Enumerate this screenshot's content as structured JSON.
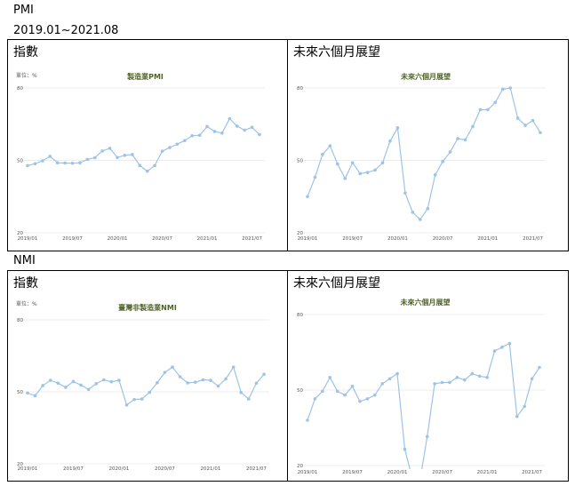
{
  "header": {
    "pmi_heading": "PMI",
    "date_range": "2019.01~2021.08",
    "nmi_heading": "NMI"
  },
  "colors": {
    "line": "#9dc3e6",
    "title": "#4f6228",
    "grid": "#d9d9d9"
  },
  "panels": {
    "pmi_index": {
      "label": "指數"
    },
    "pmi_outlook": {
      "label": "未來六個月展望"
    },
    "nmi_index": {
      "label": "指數"
    },
    "nmi_outlook": {
      "label": "未來六個月展望"
    }
  },
  "chart_data": [
    {
      "id": "pmi_index",
      "type": "line",
      "title": "製造業PMI",
      "unit": "單位：%",
      "ylim": [
        20,
        80
      ],
      "yticks": [
        20,
        50,
        80
      ],
      "grid": true,
      "x": [
        "2019/01",
        "2019/02",
        "2019/03",
        "2019/04",
        "2019/05",
        "2019/06",
        "2019/07",
        "2019/08",
        "2019/09",
        "2019/10",
        "2019/11",
        "2019/12",
        "2020/01",
        "2020/02",
        "2020/03",
        "2020/04",
        "2020/05",
        "2020/06",
        "2020/07",
        "2020/08",
        "2020/09",
        "2020/10",
        "2020/11",
        "2020/12",
        "2021/01",
        "2021/02",
        "2021/03",
        "2021/04",
        "2021/05",
        "2021/06",
        "2021/07",
        "2021/08"
      ],
      "xticks": [
        "2019/01",
        "2019/07",
        "2020/01",
        "2020/07",
        "2021/01",
        "2021/07"
      ],
      "values": [
        47.8,
        48.6,
        49.8,
        51.7,
        49.0,
        48.9,
        48.8,
        49.0,
        50.4,
        51.1,
        53.9,
        55.0,
        51.2,
        52.1,
        52.4,
        47.9,
        45.5,
        47.8,
        53.8,
        55.3,
        56.7,
        58.2,
        60.2,
        60.4,
        64.0,
        62.0,
        61.3,
        67.3,
        64.2,
        62.5,
        63.7,
        60.7
      ]
    },
    {
      "id": "pmi_outlook",
      "type": "line",
      "title": "未來六個月展望",
      "ylim": [
        20,
        80
      ],
      "yticks": [
        20,
        50,
        80
      ],
      "grid": true,
      "x": [
        "2019/01",
        "2019/02",
        "2019/03",
        "2019/04",
        "2019/05",
        "2019/06",
        "2019/07",
        "2019/08",
        "2019/09",
        "2019/10",
        "2019/11",
        "2019/12",
        "2020/01",
        "2020/02",
        "2020/03",
        "2020/04",
        "2020/05",
        "2020/06",
        "2020/07",
        "2020/08",
        "2020/09",
        "2020/10",
        "2020/11",
        "2020/12",
        "2021/01",
        "2021/02",
        "2021/03",
        "2021/04",
        "2021/05",
        "2021/06",
        "2021/07",
        "2021/08"
      ],
      "xticks": [
        "2019/01",
        "2019/07",
        "2020/01",
        "2020/07",
        "2021/01",
        "2021/07"
      ],
      "values": [
        35.0,
        43.0,
        52.5,
        56.0,
        48.5,
        42.5,
        49.0,
        44.5,
        45.0,
        46.0,
        49.0,
        58.0,
        63.5,
        36.5,
        28.5,
        25.5,
        30.0,
        44.0,
        49.5,
        53.5,
        59.0,
        58.5,
        64.0,
        71.0,
        71.0,
        74.0,
        79.5,
        80.0,
        67.5,
        64.5,
        66.5,
        61.5
      ]
    },
    {
      "id": "nmi_index",
      "type": "line",
      "title": "臺灣非製造業NMI",
      "unit": "單位：%",
      "ylim": [
        20,
        80
      ],
      "yticks": [
        20,
        50,
        80
      ],
      "grid": true,
      "x": [
        "2019/01",
        "2019/02",
        "2019/03",
        "2019/04",
        "2019/05",
        "2019/06",
        "2019/07",
        "2019/08",
        "2019/09",
        "2019/10",
        "2019/11",
        "2019/12",
        "2020/01",
        "2020/02",
        "2020/03",
        "2020/04",
        "2020/05",
        "2020/06",
        "2020/07",
        "2020/08",
        "2020/09",
        "2020/10",
        "2020/11",
        "2020/12",
        "2021/01",
        "2021/02",
        "2021/03",
        "2021/04",
        "2021/05",
        "2021/06",
        "2021/07",
        "2021/08"
      ],
      "xticks": [
        "2019/01",
        "2019/07",
        "2020/01",
        "2020/07",
        "2021/01",
        "2021/07"
      ],
      "values": [
        49.5,
        48.4,
        52.6,
        54.8,
        53.6,
        51.9,
        54.3,
        52.8,
        51.0,
        53.4,
        55.0,
        54.2,
        54.8,
        44.5,
        46.8,
        47.0,
        49.8,
        53.8,
        58.1,
        60.3,
        56.3,
        53.7,
        54.0,
        55.0,
        54.8,
        52.4,
        55.4,
        60.3,
        49.7,
        47.0,
        53.6,
        57.3
      ]
    },
    {
      "id": "nmi_outlook",
      "type": "line",
      "title": "未來六個月展望",
      "ylim": [
        20,
        80
      ],
      "yticks": [
        20,
        50,
        80
      ],
      "grid": true,
      "x": [
        "2019/01",
        "2019/02",
        "2019/03",
        "2019/04",
        "2019/05",
        "2019/06",
        "2019/07",
        "2019/08",
        "2019/09",
        "2019/10",
        "2019/11",
        "2019/12",
        "2020/01",
        "2020/02",
        "2020/03",
        "2020/04",
        "2020/05",
        "2020/06",
        "2020/07",
        "2020/08",
        "2020/09",
        "2020/10",
        "2020/11",
        "2020/12",
        "2021/01",
        "2021/02",
        "2021/03",
        "2021/04",
        "2021/05",
        "2021/06",
        "2021/07",
        "2021/08"
      ],
      "xticks": [
        "2019/01",
        "2019/07",
        "2020/01",
        "2020/07",
        "2021/01",
        "2021/07"
      ],
      "values": [
        38.0,
        46.5,
        49.5,
        55.0,
        49.5,
        48.0,
        51.5,
        45.5,
        46.5,
        48.0,
        52.5,
        54.5,
        56.5,
        26.5,
        15.0,
        13.5,
        31.5,
        52.5,
        53.0,
        53.0,
        55.0,
        54.0,
        56.5,
        55.5,
        55.0,
        65.5,
        67.0,
        68.5,
        39.5,
        43.5,
        54.5,
        59.0
      ]
    }
  ]
}
